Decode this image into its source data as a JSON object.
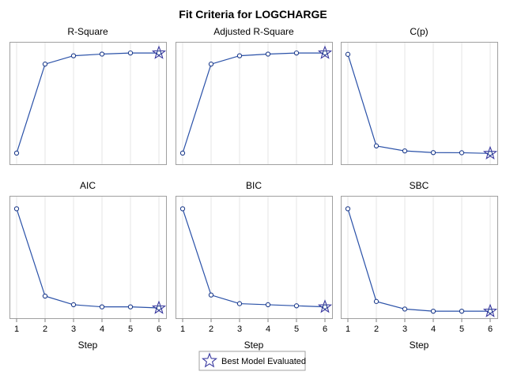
{
  "chart_data": {
    "title": "Fit Criteria for LOGCHARGE",
    "type": "line",
    "x": [
      1,
      2,
      3,
      4,
      5,
      6
    ],
    "xlabel": "Step",
    "best_step": 6,
    "legend": {
      "label": "Best Model Evaluated",
      "position": "bottom-center"
    },
    "panels": [
      {
        "name": "R-Square",
        "values": [
          0.5,
          0.82,
          0.85,
          0.856,
          0.86,
          0.86
        ],
        "ylim": [
          0.46,
          0.9
        ]
      },
      {
        "name": "Adjusted R-Square",
        "values": [
          0.5,
          0.82,
          0.85,
          0.856,
          0.86,
          0.86
        ],
        "ylim": [
          0.46,
          0.9
        ]
      },
      {
        "name": "C(p)",
        "values": [
          120,
          10,
          4,
          2,
          1.8,
          1
        ],
        "ylim": [
          -12,
          135
        ]
      },
      {
        "name": "AIC",
        "values": [
          100,
          19,
          11,
          9,
          9,
          8
        ],
        "ylim": [
          -1.5,
          112
        ]
      },
      {
        "name": "BIC",
        "values": [
          100,
          20,
          12,
          11,
          10,
          9
        ],
        "ylim": [
          -1.5,
          112
        ]
      },
      {
        "name": "SBC",
        "values": [
          100,
          14,
          7,
          5,
          5,
          5
        ],
        "ylim": [
          -1.5,
          112
        ]
      }
    ]
  }
}
